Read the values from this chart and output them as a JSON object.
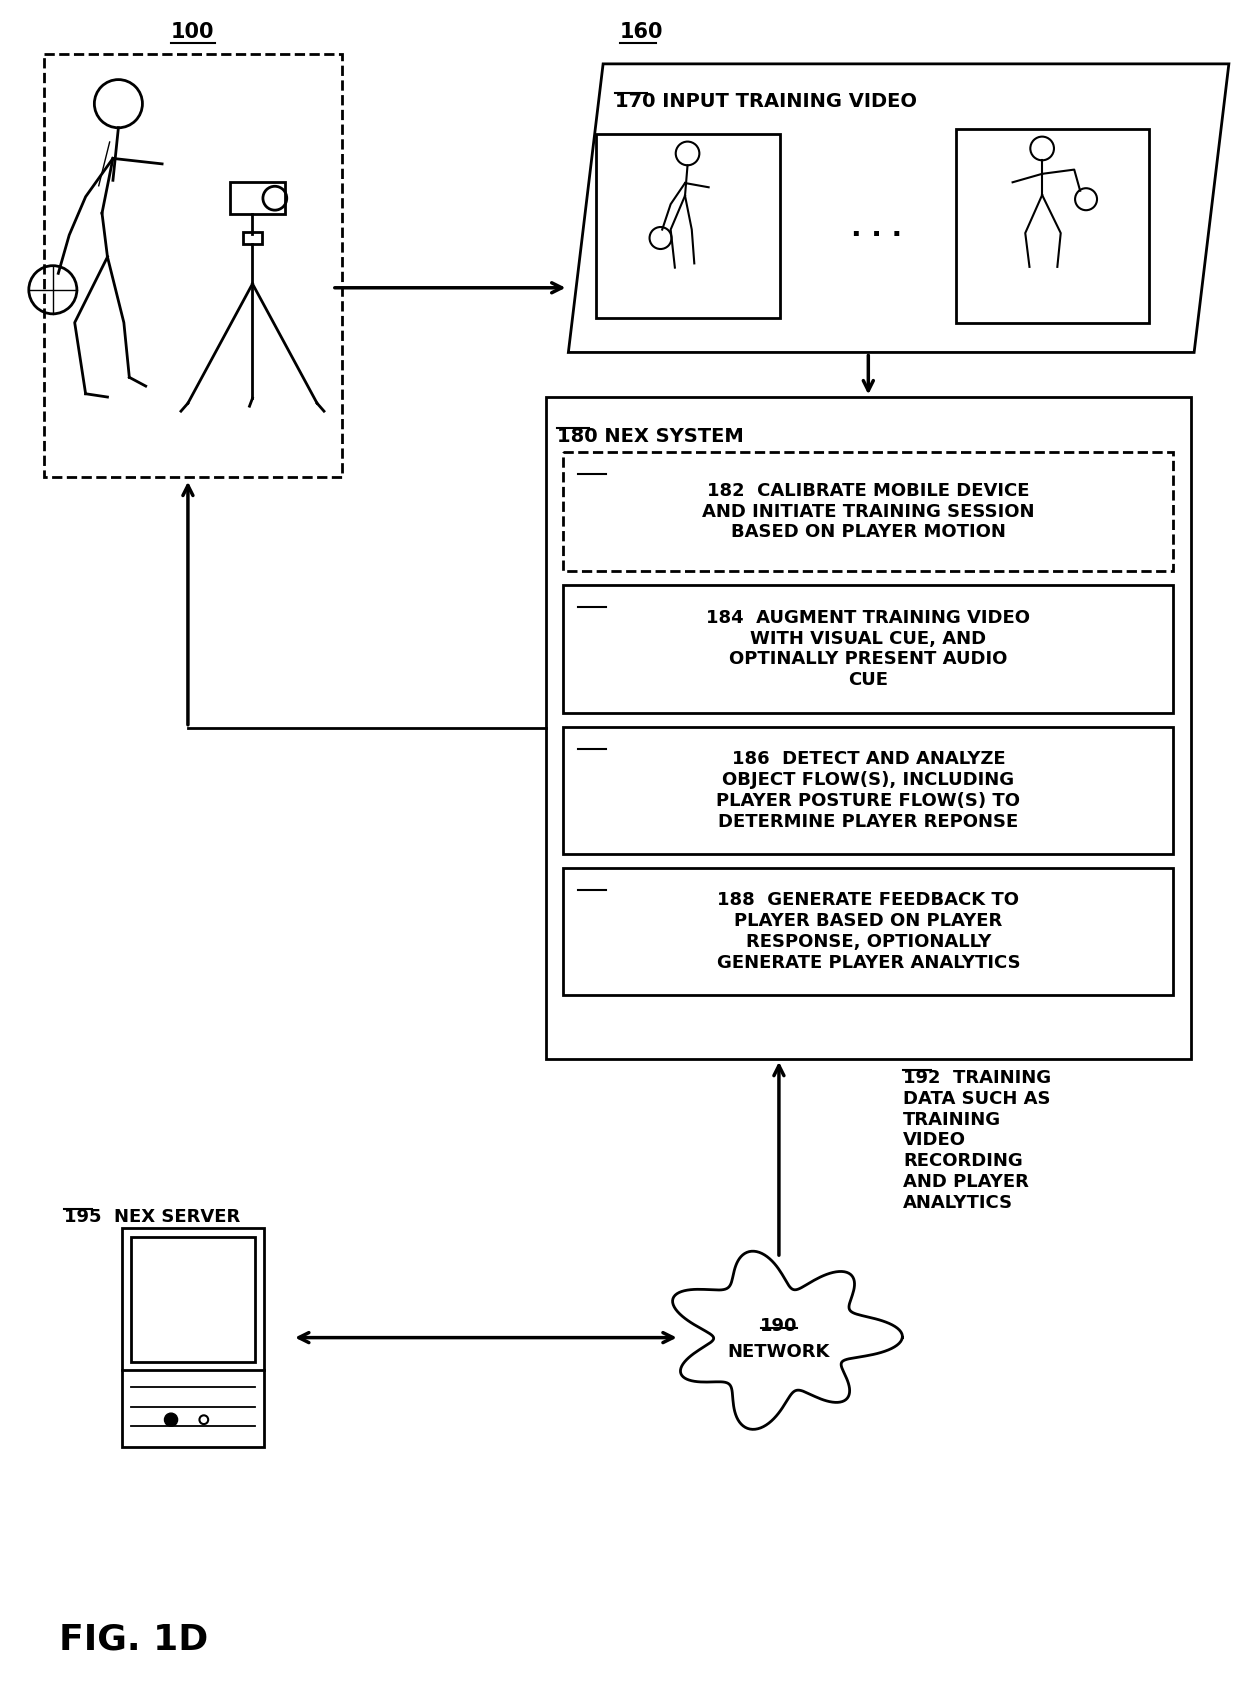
{
  "fig_label": "FIG. 1D",
  "background_color": "#ffffff",
  "label_100": "100",
  "label_160": "160",
  "label_170": "170 INPUT TRAINING VIDEO",
  "label_180": "180 NEX SYSTEM",
  "label_182_num": "182",
  "label_182_text": "CALIBRATE MOBILE DEVICE\nAND INITIATE TRAINING SESSION\nBASED ON PLAYER MOTION",
  "label_184_num": "184",
  "label_184_text": "AUGMENT TRAINING VIDEO\nWITH VISUAL CUE, AND\nOPTINALLY PRESENT AUDIO\nCUE",
  "label_186_num": "186",
  "label_186_text": "DETECT AND ANALYZE\nOBJECT FLOW(S), INCLUDING\nPLAYER POSTURE FLOW(S) TO\nDETERMINE PLAYER REPONSE",
  "label_188_num": "188",
  "label_188_text": "GENERATE FEEDBACK TO\nPLAYER BASED ON PLAYER\nRESPONSE, OPTIONALLY\nGENERATE PLAYER ANALYTICS",
  "label_190_line1": "190",
  "label_190_line2": "NETWORK",
  "label_192_num": "192",
  "label_192_text": "TRAINING\nDATA SUCH AS\nTRAINING\nVIDEO\nRECORDING\nAND PLAYER\nANALYTICS",
  "label_195": "195",
  "label_195_text": "NEX SERVER"
}
